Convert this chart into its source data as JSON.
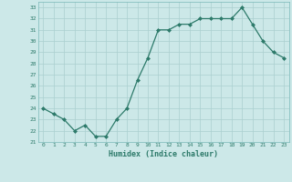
{
  "x": [
    0,
    1,
    2,
    3,
    4,
    5,
    6,
    7,
    8,
    9,
    10,
    11,
    12,
    13,
    14,
    15,
    16,
    17,
    18,
    19,
    20,
    21,
    22,
    23
  ],
  "y": [
    24.0,
    23.5,
    23.0,
    22.0,
    22.5,
    21.5,
    21.5,
    23.0,
    24.0,
    26.5,
    28.5,
    31.0,
    31.0,
    31.5,
    31.5,
    32.0,
    32.0,
    32.0,
    32.0,
    33.0,
    31.5,
    30.0,
    29.0,
    28.5
  ],
  "xlabel": "Humidex (Indice chaleur)",
  "xlim": [
    -0.5,
    23.5
  ],
  "ylim": [
    21,
    33.5
  ],
  "yticks": [
    21,
    22,
    23,
    24,
    25,
    26,
    27,
    28,
    29,
    30,
    31,
    32,
    33
  ],
  "xticks": [
    0,
    1,
    2,
    3,
    4,
    5,
    6,
    7,
    8,
    9,
    10,
    11,
    12,
    13,
    14,
    15,
    16,
    17,
    18,
    19,
    20,
    21,
    22,
    23
  ],
  "line_color": "#2d7a6a",
  "marker_color": "#2d7a6a",
  "bg_color": "#cce8e8",
  "grid_color": "#aacfcf",
  "xlabel_color": "#2d7a6a",
  "tick_color": "#2d7a6a",
  "spine_color": "#7ab8b8"
}
